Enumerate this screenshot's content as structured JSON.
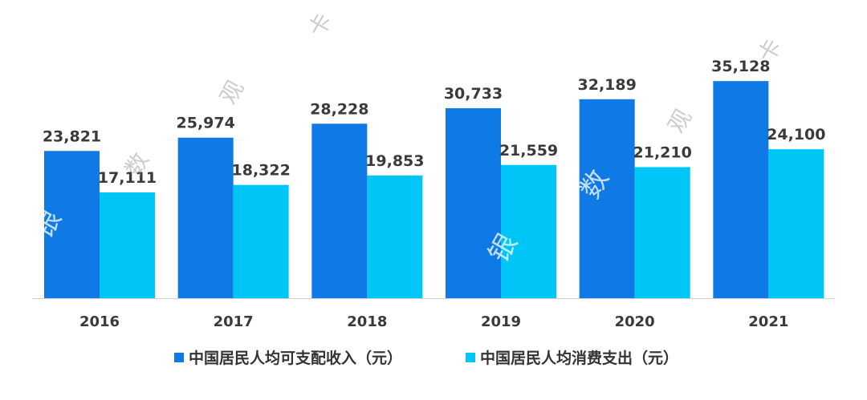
{
  "chart_data": {
    "type": "bar",
    "title": "",
    "xlabel": "",
    "ylabel": "",
    "categories": [
      "2016",
      "2017",
      "2018",
      "2019",
      "2020",
      "2021"
    ],
    "series": [
      {
        "name": "中国居民人均可支配收入（元）",
        "color": "#0f7ae5",
        "values": [
          23821,
          25974,
          28228,
          30733,
          32189,
          35128
        ]
      },
      {
        "name": "中国居民人均消费支出（元）",
        "color": "#00c6f8",
        "values": [
          17111,
          18322,
          19853,
          21559,
          21210,
          24100
        ]
      }
    ],
    "value_labels": [
      [
        "23,821",
        "25,974",
        "28,228",
        "30,733",
        "32,189",
        "35,128"
      ],
      [
        "17,111",
        "18,322",
        "19,853",
        "21,559",
        "21,210",
        "24,100"
      ]
    ],
    "ylim": [
      0,
      45000
    ],
    "grid": false,
    "legend_position": "bottom"
  },
  "watermark": [
    "数",
    "观",
    "卡",
    "银"
  ]
}
